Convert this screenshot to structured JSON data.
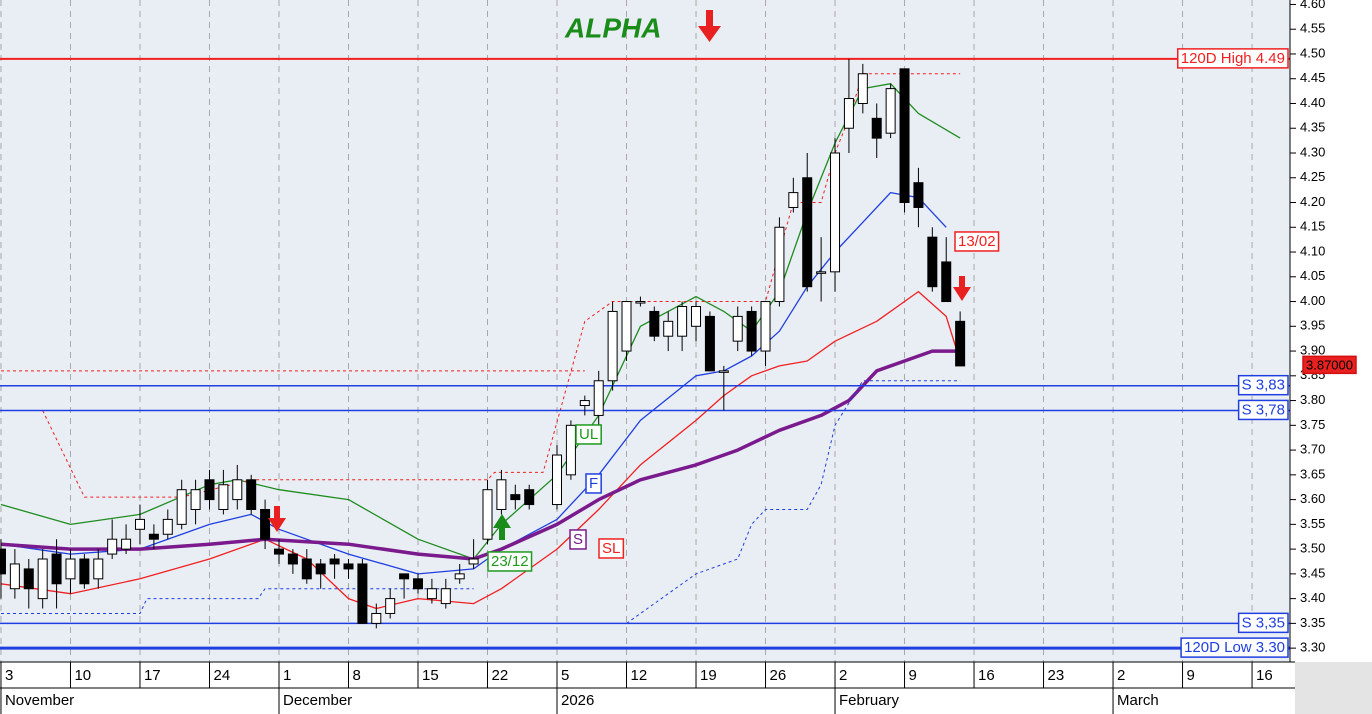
{
  "chart_data": {
    "type": "candlestick",
    "title": "ALPHA",
    "xlim": [
      -0.07,
      92.73
    ],
    "xticks": [
      {
        "value": 0,
        "label": "3"
      },
      {
        "value": 5,
        "label": "10"
      },
      {
        "value": 10,
        "label": "17"
      },
      {
        "value": 15,
        "label": "24"
      },
      {
        "value": 20,
        "label": "1"
      },
      {
        "value": 25,
        "label": "8"
      },
      {
        "value": 30,
        "label": "15"
      },
      {
        "value": 35,
        "label": "22"
      },
      {
        "value": 40,
        "label": "5"
      },
      {
        "value": 45,
        "label": "12"
      },
      {
        "value": 50,
        "label": "19"
      },
      {
        "value": 55,
        "label": "26"
      },
      {
        "value": 60,
        "label": "2"
      },
      {
        "value": 65,
        "label": "9"
      },
      {
        "value": 70,
        "label": "16"
      },
      {
        "value": 75,
        "label": "23"
      },
      {
        "value": 80,
        "label": "2"
      },
      {
        "value": 85,
        "label": "9"
      },
      {
        "value": 90,
        "label": "16"
      }
    ],
    "months": [
      {
        "value": 0,
        "label": "November"
      },
      {
        "value": 20,
        "label": "December"
      },
      {
        "value": 40,
        "label": "2026"
      },
      {
        "value": 60,
        "label": "February"
      },
      {
        "value": 80,
        "label": "March"
      }
    ],
    "ylim": [
      3.272,
      4.609
    ],
    "yticks": [
      {
        "value": 4.6,
        "label": "4.60"
      },
      {
        "value": 4.55,
        "label": "4.55"
      },
      {
        "value": 4.5,
        "label": "4.50"
      },
      {
        "value": 4.45,
        "label": "4.45"
      },
      {
        "value": 4.4,
        "label": "4.40"
      },
      {
        "value": 4.35,
        "label": "4.35"
      },
      {
        "value": 4.3,
        "label": "4.30"
      },
      {
        "value": 4.25,
        "label": "4.25"
      },
      {
        "value": 4.2,
        "label": "4.20"
      },
      {
        "value": 4.15,
        "label": "4.15"
      },
      {
        "value": 4.1,
        "label": "4.10"
      },
      {
        "value": 4.05,
        "label": "4.05"
      },
      {
        "value": 4.0,
        "label": "4.00"
      },
      {
        "value": 3.95,
        "label": "3.95"
      },
      {
        "value": 3.9,
        "label": "3.90"
      },
      {
        "value": 3.85,
        "label": "3.85"
      },
      {
        "value": 3.8,
        "label": "3.80"
      },
      {
        "value": 3.75,
        "label": "3.75"
      },
      {
        "value": 3.7,
        "label": "3.70"
      },
      {
        "value": 3.65,
        "label": "3.65"
      },
      {
        "value": 3.6,
        "label": "3.60"
      },
      {
        "value": 3.55,
        "label": "3.55"
      },
      {
        "value": 3.5,
        "label": "3.50"
      },
      {
        "value": 3.45,
        "label": "3.45"
      },
      {
        "value": 3.4,
        "label": "3.40"
      },
      {
        "value": 3.35,
        "label": "3.35"
      },
      {
        "value": 3.3,
        "label": "3.30"
      }
    ],
    "x": [
      0,
      1,
      2,
      3,
      4,
      5,
      6,
      7,
      8,
      9,
      10,
      11,
      12,
      13,
      14,
      15,
      16,
      17,
      18,
      19,
      20,
      21,
      22,
      23,
      24,
      25,
      26,
      27,
      28,
      29,
      30,
      31,
      32,
      33,
      34,
      35,
      36,
      37,
      38,
      40,
      41,
      42,
      43,
      44,
      45,
      46,
      47,
      48,
      49,
      50,
      51,
      52,
      53,
      54,
      55,
      56,
      57,
      58,
      59,
      60,
      61,
      62,
      63,
      64,
      65,
      66,
      67,
      68,
      69
    ],
    "open": [
      3.5,
      3.42,
      3.46,
      3.4,
      3.49,
      3.44,
      3.48,
      3.44,
      3.49,
      3.5,
      3.54,
      3.53,
      3.53,
      3.55,
      3.58,
      3.64,
      3.58,
      3.6,
      3.64,
      3.58,
      3.5,
      3.49,
      3.48,
      3.47,
      3.48,
      3.47,
      3.47,
      3.35,
      3.37,
      3.45,
      3.44,
      3.4,
      3.39,
      3.44,
      3.47,
      3.52,
      3.58,
      3.61,
      3.62,
      3.59,
      3.65,
      3.79,
      3.77,
      3.84,
      3.9,
      4.0,
      3.98,
      3.93,
      3.93,
      3.95,
      3.97,
      3.86,
      3.92,
      3.98,
      3.9,
      4.0,
      4.19,
      4.25,
      4.06,
      4.06,
      4.35,
      4.4,
      4.37,
      4.34,
      4.47,
      4.24,
      4.13,
      4.08,
      3.96
    ],
    "high": [
      3.52,
      3.5,
      3.48,
      3.5,
      3.52,
      3.5,
      3.49,
      3.5,
      3.56,
      3.55,
      3.59,
      3.55,
      3.58,
      3.64,
      3.64,
      3.66,
      3.66,
      3.67,
      3.65,
      3.6,
      3.52,
      3.5,
      3.5,
      3.48,
      3.49,
      3.48,
      3.48,
      3.39,
      3.42,
      3.45,
      3.45,
      3.44,
      3.44,
      3.47,
      3.52,
      3.64,
      3.66,
      3.63,
      3.63,
      3.71,
      3.76,
      3.81,
      3.86,
      4.0,
      4.0,
      4.01,
      3.99,
      3.98,
      4.0,
      4.0,
      3.98,
      3.87,
      3.99,
      3.99,
      4.0,
      4.17,
      4.25,
      4.3,
      4.13,
      4.33,
      4.49,
      4.48,
      4.4,
      4.44,
      4.47,
      4.27,
      4.15,
      4.13,
      3.98
    ],
    "low": [
      3.4,
      3.4,
      3.38,
      3.38,
      3.38,
      3.41,
      3.42,
      3.42,
      3.48,
      3.49,
      3.51,
      3.5,
      3.52,
      3.54,
      3.55,
      3.58,
      3.57,
      3.58,
      3.57,
      3.5,
      3.47,
      3.45,
      3.43,
      3.42,
      3.44,
      3.44,
      3.35,
      3.34,
      3.36,
      3.4,
      3.41,
      3.39,
      3.38,
      3.43,
      3.46,
      3.51,
      3.57,
      3.58,
      3.58,
      3.58,
      3.64,
      3.77,
      3.75,
      3.82,
      3.88,
      3.99,
      3.92,
      3.9,
      3.9,
      3.92,
      3.86,
      3.78,
      3.9,
      3.89,
      3.87,
      3.99,
      4.18,
      4.02,
      4.0,
      4.02,
      4.3,
      4.38,
      4.29,
      4.33,
      4.18,
      4.15,
      4.02,
      4.0,
      3.87
    ],
    "close": [
      3.45,
      3.47,
      3.42,
      3.48,
      3.43,
      3.48,
      3.43,
      3.48,
      3.52,
      3.52,
      3.56,
      3.52,
      3.56,
      3.62,
      3.62,
      3.6,
      3.63,
      3.64,
      3.58,
      3.52,
      3.49,
      3.47,
      3.44,
      3.45,
      3.47,
      3.46,
      3.35,
      3.37,
      3.4,
      3.44,
      3.42,
      3.42,
      3.42,
      3.45,
      3.48,
      3.62,
      3.64,
      3.6,
      3.59,
      3.69,
      3.75,
      3.8,
      3.84,
      3.98,
      4.0,
      4.0,
      3.93,
      3.96,
      3.99,
      3.99,
      3.86,
      3.86,
      3.97,
      3.9,
      4.0,
      4.15,
      4.22,
      4.03,
      4.06,
      4.3,
      4.41,
      4.46,
      4.33,
      4.43,
      4.2,
      4.19,
      4.03,
      4.0,
      3.87
    ],
    "lines": [
      {
        "color": "#1e8c1e",
        "width": 1.3,
        "dashed": false,
        "x": [
          0,
          5,
          10,
          15,
          17,
          20,
          25,
          30,
          34,
          36,
          40,
          43,
          46,
          50,
          52,
          54,
          56,
          58,
          60,
          62,
          64,
          66,
          69
        ],
        "values": [
          3.59,
          3.55,
          3.57,
          3.63,
          3.64,
          3.62,
          3.6,
          3.52,
          3.48,
          3.55,
          3.65,
          3.77,
          3.95,
          4.01,
          3.98,
          3.94,
          4.02,
          4.18,
          4.32,
          4.43,
          4.44,
          4.38,
          4.33
        ]
      },
      {
        "color": "#1f3fe0",
        "width": 1.3,
        "dashed": false,
        "x": [
          0,
          5,
          10,
          15,
          18,
          20,
          25,
          30,
          34,
          36,
          40,
          43,
          46,
          50,
          52,
          54,
          56,
          58,
          60,
          62,
          64,
          66,
          68
        ],
        "values": [
          3.51,
          3.49,
          3.5,
          3.55,
          3.57,
          3.54,
          3.49,
          3.45,
          3.46,
          3.5,
          3.56,
          3.65,
          3.76,
          3.85,
          3.86,
          3.89,
          3.94,
          4.03,
          4.1,
          4.16,
          4.22,
          4.21,
          4.15
        ]
      },
      {
        "color": "#f02020",
        "width": 1.3,
        "dashed": false,
        "x": [
          0,
          5,
          10,
          15,
          19,
          22,
          25,
          27,
          30,
          34,
          36,
          40,
          43,
          46,
          50,
          52,
          54,
          56,
          58,
          60,
          63,
          66,
          68,
          69
        ],
        "values": [
          3.43,
          3.41,
          3.44,
          3.48,
          3.52,
          3.48,
          3.4,
          3.38,
          3.4,
          3.39,
          3.42,
          3.5,
          3.58,
          3.67,
          3.76,
          3.81,
          3.85,
          3.87,
          3.88,
          3.92,
          3.96,
          4.02,
          3.97,
          3.88
        ]
      },
      {
        "color": "#7a1a8c",
        "width": 3.5,
        "dashed": false,
        "x": [
          0,
          5,
          10,
          15,
          19,
          25,
          30,
          34,
          36,
          40,
          43,
          46,
          50,
          53,
          56,
          59,
          61,
          63,
          65,
          67,
          69
        ],
        "values": [
          3.51,
          3.5,
          3.5,
          3.51,
          3.52,
          3.51,
          3.49,
          3.48,
          3.5,
          3.55,
          3.6,
          3.64,
          3.67,
          3.7,
          3.74,
          3.77,
          3.8,
          3.86,
          3.88,
          3.9,
          3.9
        ]
      },
      {
        "color": "#f02020",
        "width": 1,
        "dashed": true,
        "x": [
          3,
          6,
          13,
          18,
          35,
          35.5,
          39,
          42,
          44,
          55,
          56,
          57,
          59,
          60,
          61,
          62,
          69
        ],
        "values": [
          3.78,
          3.605,
          3.605,
          3.64,
          3.64,
          3.655,
          3.655,
          3.96,
          4.0,
          4.0,
          4.1,
          4.2,
          4.2,
          4.3,
          4.37,
          4.46,
          4.46
        ]
      },
      {
        "color": "#f02020",
        "width": 1,
        "dashed": true,
        "x": [
          0,
          42
        ],
        "values": [
          3.86,
          3.86
        ]
      },
      {
        "color": "#1f3fe0",
        "width": 1,
        "dashed": true,
        "x": [
          0,
          10,
          10.5,
          18.5,
          19,
          34,
          40,
          45,
          47,
          50,
          53,
          54,
          55,
          58,
          59,
          60,
          62,
          69
        ],
        "values": [
          3.37,
          3.37,
          3.4,
          3.4,
          3.42,
          3.42,
          null,
          3.35,
          3.39,
          3.45,
          3.48,
          3.55,
          3.58,
          3.58,
          3.63,
          3.75,
          3.84,
          3.84
        ]
      }
    ],
    "levels": [
      {
        "value": 4.49,
        "label": "120D High 4.49",
        "color": "#f02020",
        "width": 2
      },
      {
        "value": 3.83,
        "label": "S 3,83",
        "color": "#1f3fe0",
        "width": 1.5
      },
      {
        "value": 3.78,
        "label": "S 3,78",
        "color": "#1f3fe0",
        "width": 1.5
      },
      {
        "value": 3.35,
        "label": "S 3,35",
        "color": "#1f3fe0",
        "width": 1.5
      },
      {
        "value": 3.3,
        "label": "120D Low 3.30",
        "color": "#1f3fe0",
        "width": 3
      }
    ],
    "last_price": {
      "value": 3.87,
      "label": "3.87000"
    },
    "annotations": [
      {
        "text": "UL",
        "color": "#1e9a1e"
      },
      {
        "text": "F",
        "color": "#1f3fe0"
      },
      {
        "text": "S",
        "color": "#7a1a8c"
      },
      {
        "text": "SL",
        "color": "#f02020"
      },
      {
        "text": "23/12",
        "color": "#1e9a1e"
      },
      {
        "text": "13/02",
        "color": "#f02020"
      }
    ]
  }
}
